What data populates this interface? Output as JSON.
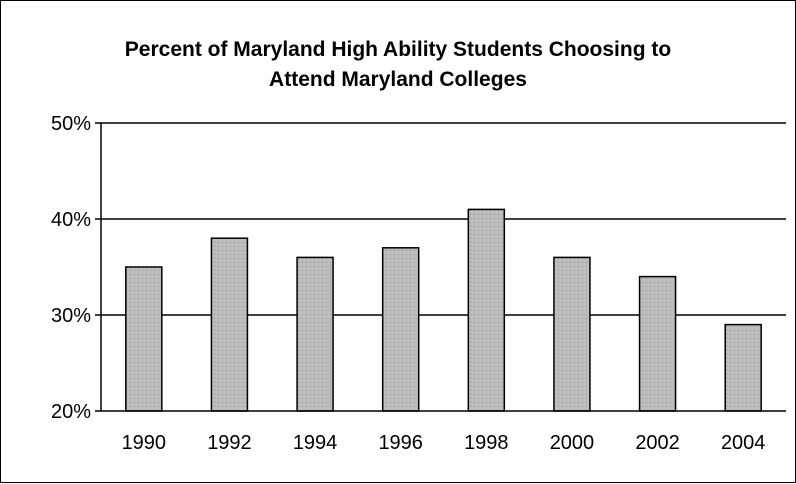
{
  "chart_data": {
    "type": "bar",
    "title_lines": [
      "Percent of Maryland High Ability Students Choosing to",
      "Attend Maryland Colleges"
    ],
    "xlabel": "",
    "ylabel": "",
    "categories": [
      "1990",
      "1992",
      "1994",
      "1996",
      "1998",
      "2000",
      "2002",
      "2004"
    ],
    "values": [
      35,
      38,
      36,
      37,
      41,
      36,
      34,
      29
    ],
    "ylim": [
      20,
      50
    ],
    "yticks": [
      20,
      30,
      40,
      50
    ],
    "ytick_labels": [
      "20%",
      "30%",
      "40%",
      "50%"
    ],
    "grid": true,
    "legend": "none",
    "bar_color": "#bdbdbd",
    "grid_color": "#000000"
  }
}
